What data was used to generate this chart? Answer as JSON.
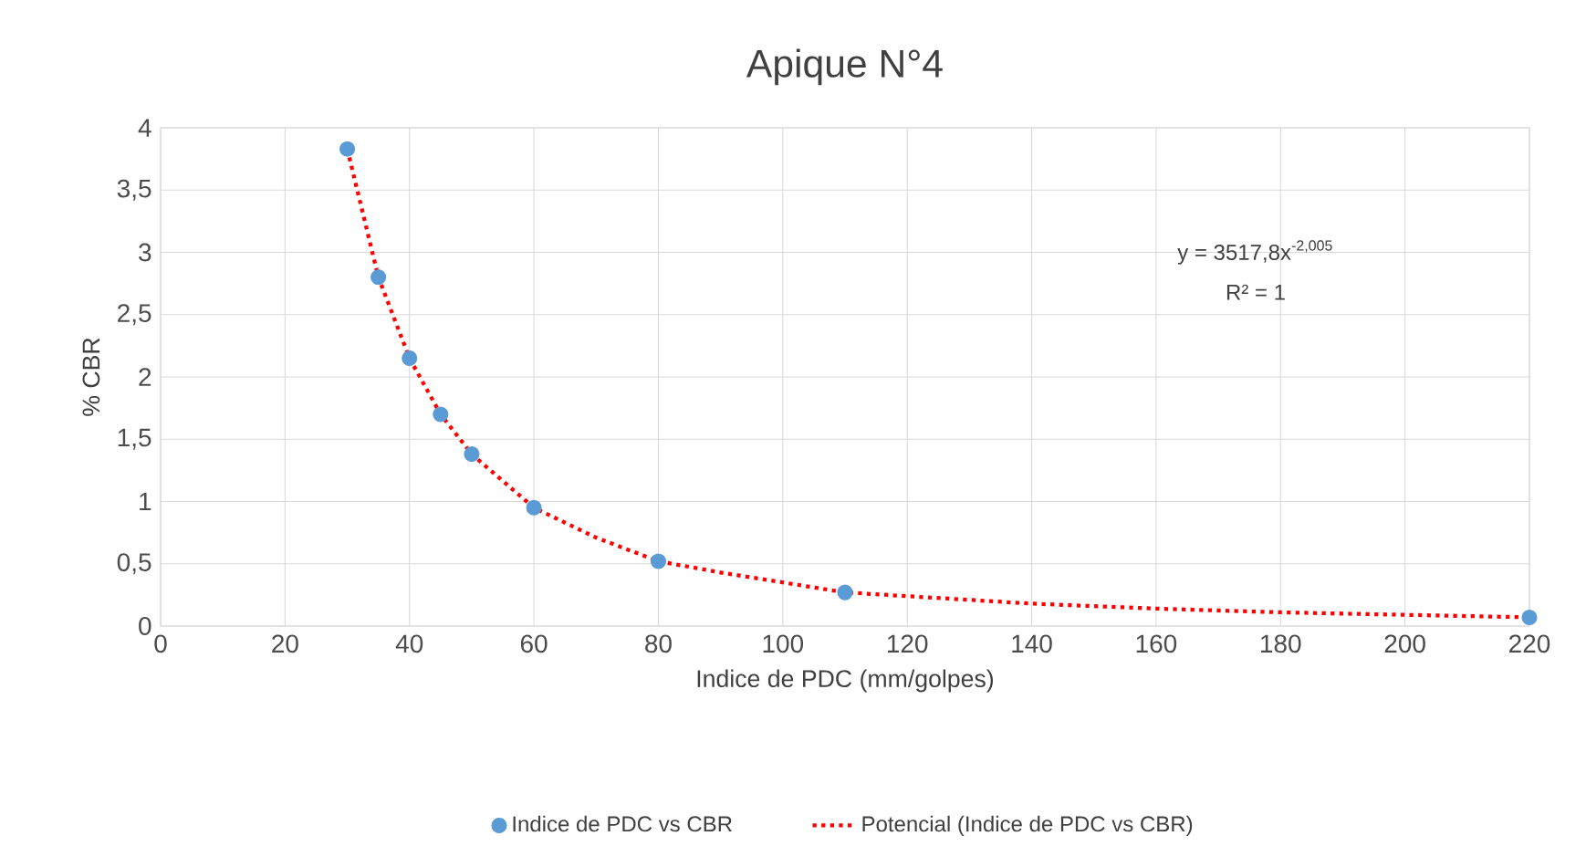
{
  "chart_data": {
    "type": "scatter",
    "title": "Apique N°4",
    "xlabel": "Indice de PDC (mm/golpes)",
    "ylabel": "% CBR",
    "xlim": [
      0,
      220
    ],
    "xticks": [
      0,
      20,
      40,
      60,
      80,
      100,
      120,
      140,
      160,
      180,
      200,
      220
    ],
    "ylim": [
      0,
      4
    ],
    "yticks": [
      0,
      {
        "value": 0.5,
        "label": "0,5"
      },
      1,
      {
        "value": 1.5,
        "label": "1,5"
      },
      2,
      {
        "value": 2.5,
        "label": "2,5"
      },
      3,
      {
        "value": 3.5,
        "label": "3,5"
      },
      4
    ],
    "grid": true,
    "legend": "bottom",
    "annotations": [
      "y = 3517,8x$^{-2,005}$",
      "R² = 1"
    ],
    "series": [
      {
        "name": "Indice de PDC vs CBR",
        "marker": "circle",
        "color": "#5b9bd5",
        "x": [
          30,
          35,
          40,
          45,
          50,
          60,
          80,
          110,
          220
        ],
        "values": [
          3.83,
          2.8,
          2.15,
          1.7,
          1.38,
          0.95,
          0.52,
          0.27,
          0.07
        ]
      },
      {
        "name": "Potencial (Indice de PDC vs CBR)",
        "type": "line",
        "line_style": "dotted",
        "marker": "none",
        "color": "#ff0000",
        "x": [
          30,
          35,
          40,
          45,
          50,
          60,
          70,
          80,
          90,
          100,
          110,
          120,
          140,
          160,
          180,
          200,
          220
        ],
        "values": [
          3.83,
          2.8,
          2.15,
          1.7,
          1.38,
          0.95,
          0.71,
          0.52,
          0.43,
          0.35,
          0.27,
          0.24,
          0.18,
          0.14,
          0.11,
          0.09,
          0.07
        ]
      }
    ]
  }
}
